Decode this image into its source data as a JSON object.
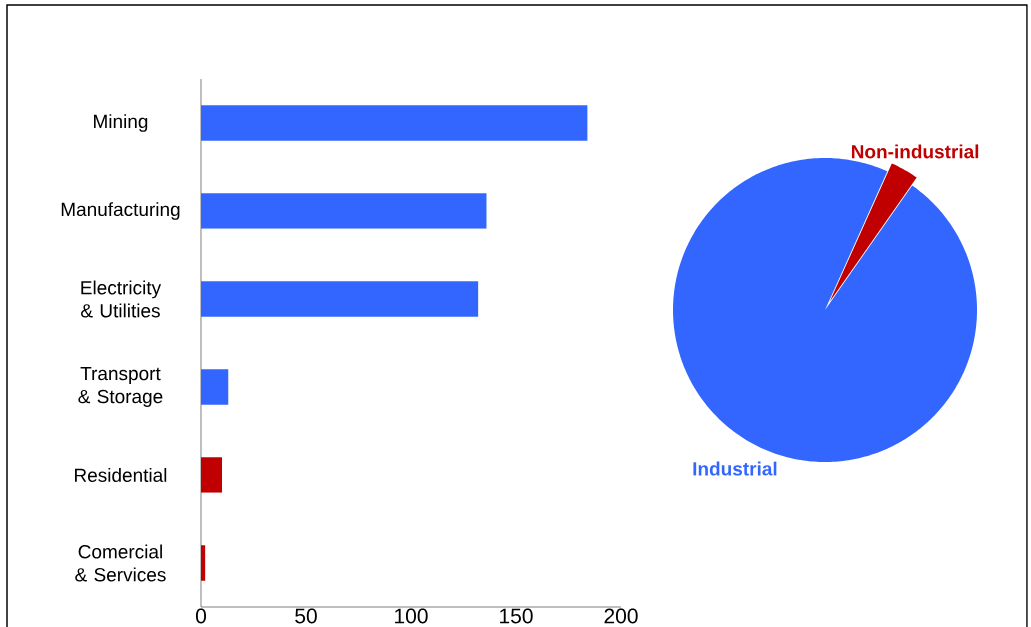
{
  "chart_data": [
    {
      "type": "bar",
      "orientation": "horizontal",
      "categories": [
        "Mining",
        "Manufacturing",
        "Electricity & Utilities",
        "Transport & Storage",
        "Residential",
        "Comercial & Services"
      ],
      "values": [
        184,
        136,
        132,
        13,
        10,
        2
      ],
      "colors": [
        "#3366ff",
        "#3366ff",
        "#3366ff",
        "#3366ff",
        "#c00000",
        "#c00000"
      ],
      "xlim": [
        0,
        200
      ],
      "xticks": [
        0,
        50,
        100,
        150,
        200
      ]
    },
    {
      "type": "pie",
      "categories": [
        "Industrial",
        "Non-industrial"
      ],
      "values": [
        97,
        3
      ],
      "colors": [
        "#3366ff",
        "#c00000"
      ]
    }
  ]
}
